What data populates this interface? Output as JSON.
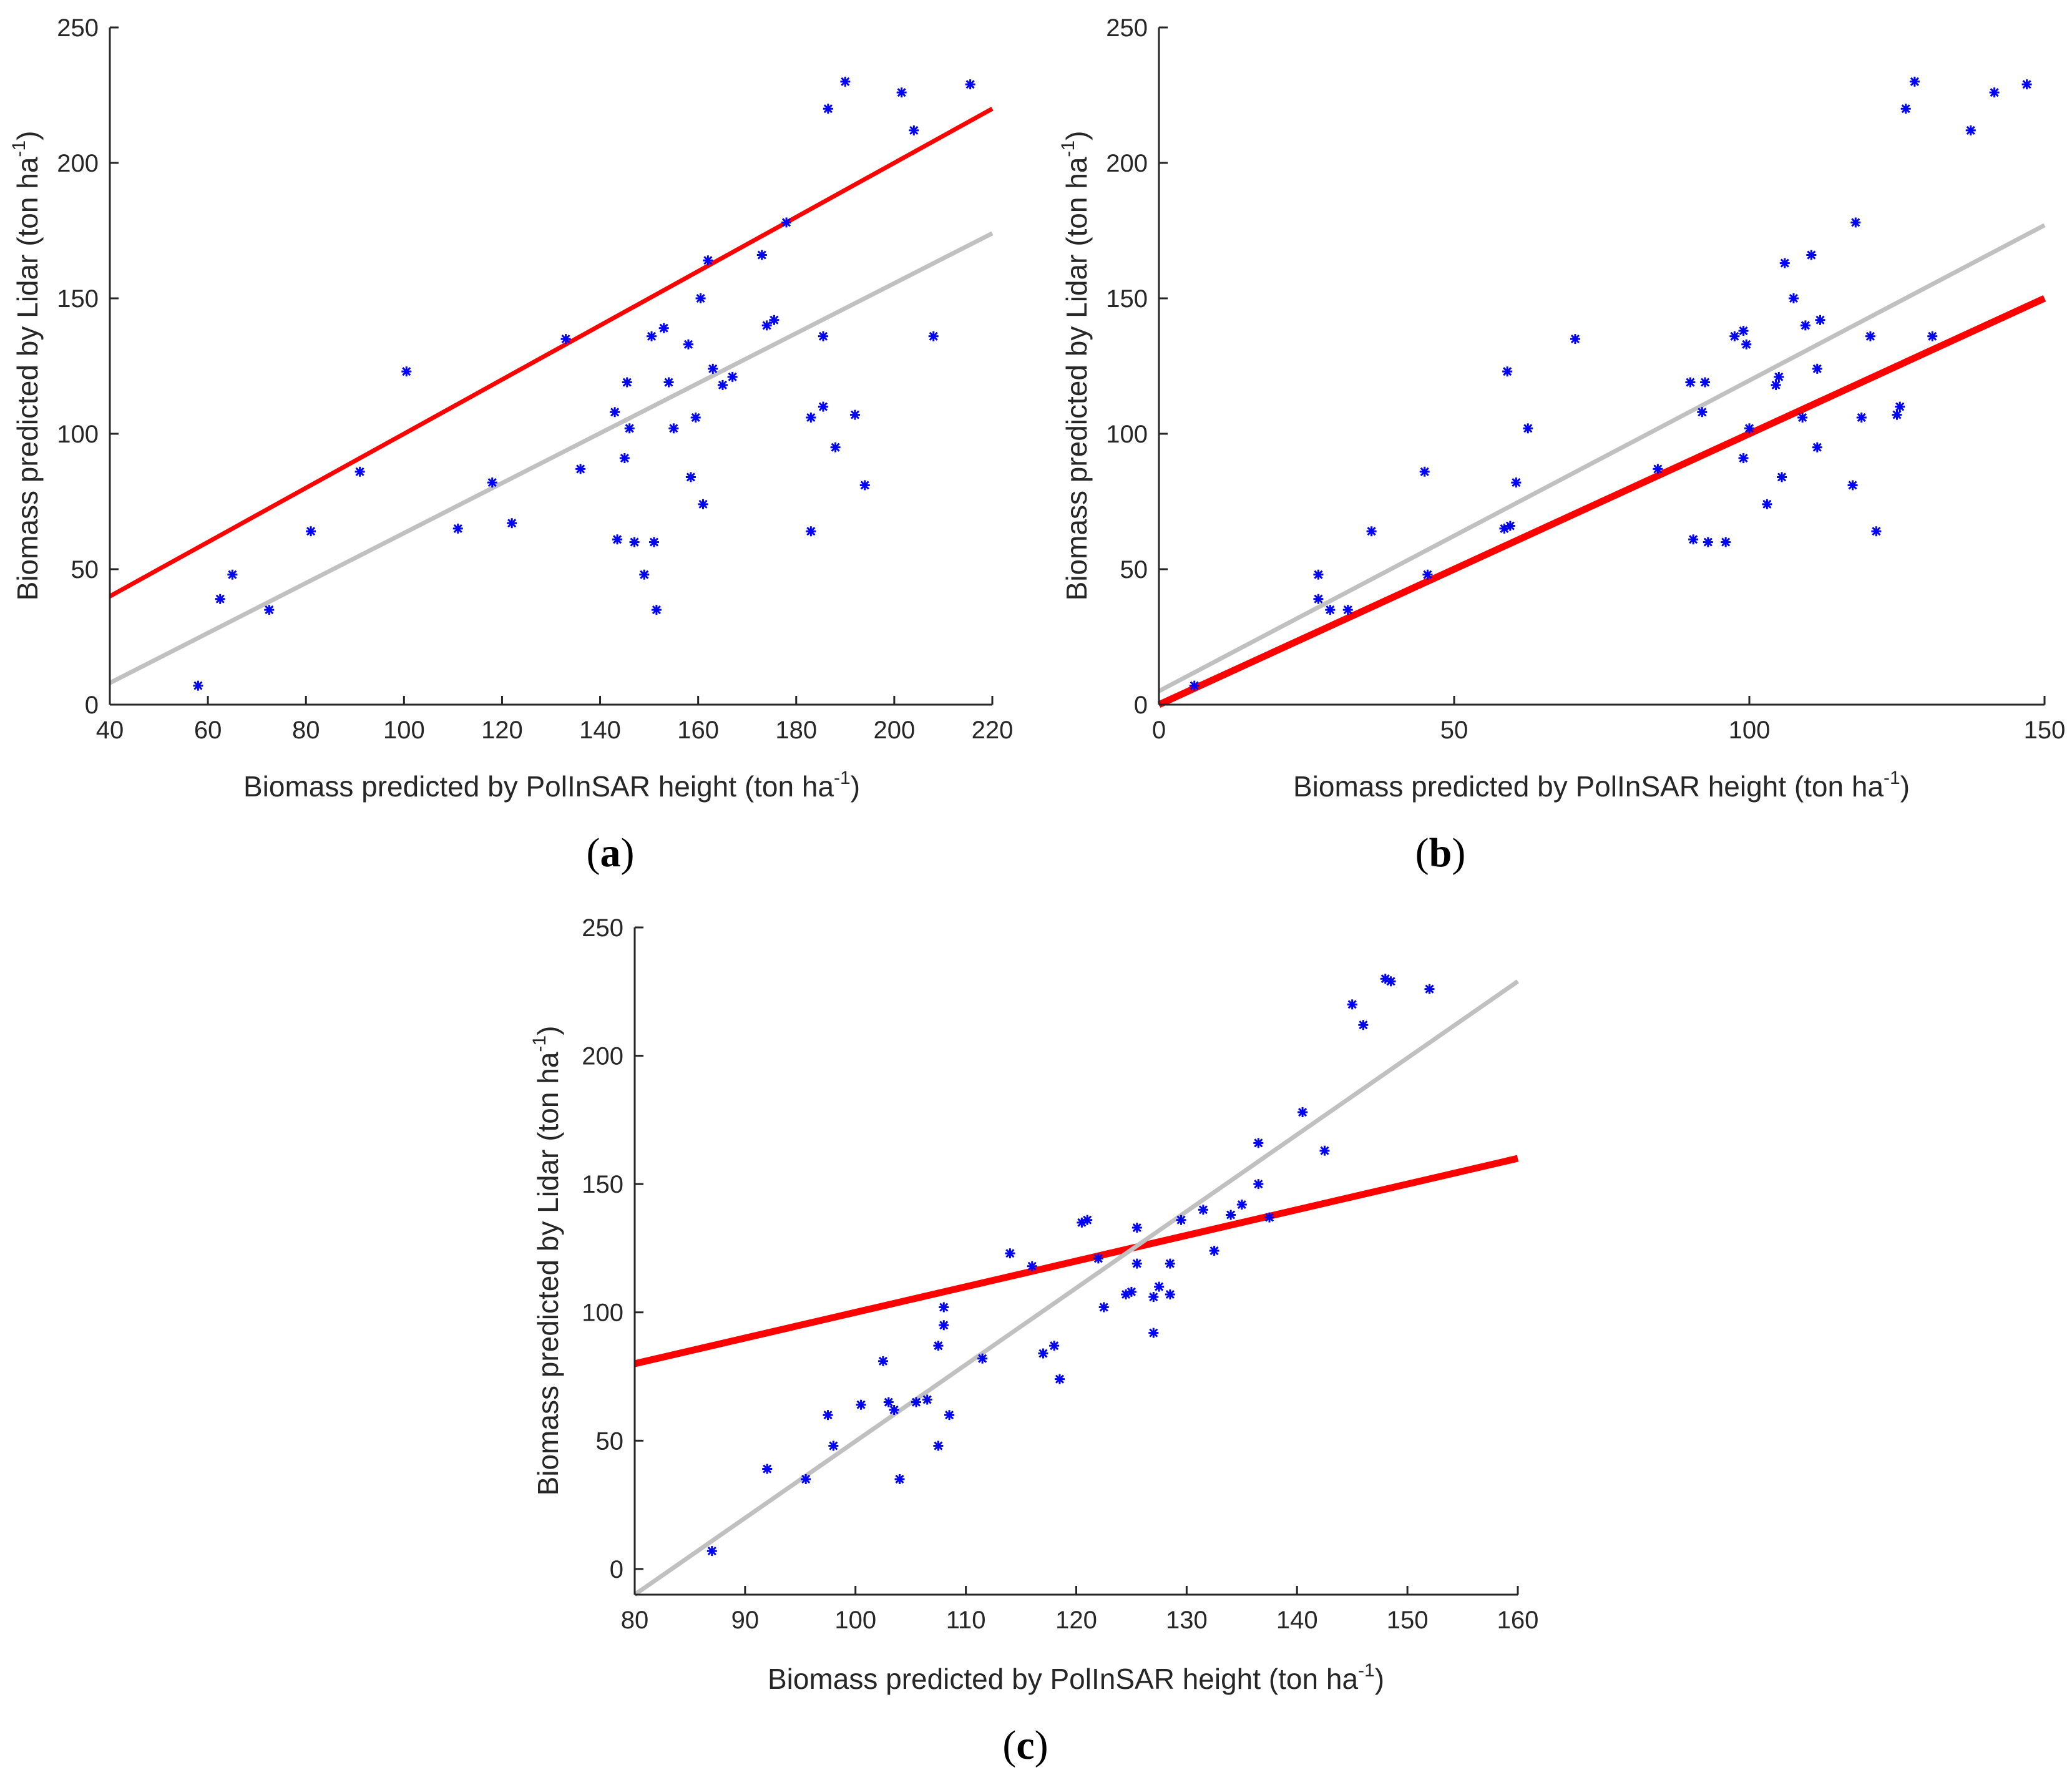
{
  "chart_data": [
    {
      "type": "scatter",
      "panel_label": "a",
      "xlabel": "Biomass predicted by PolInSAR height (ton ha",
      "ylabel": "Biomass predicted by Lidar (ton ha",
      "unit_exponent": "-1",
      "xlim": [
        40,
        220
      ],
      "ylim": [
        0,
        250
      ],
      "xticks": [
        "40",
        "60",
        "80",
        "100",
        "120",
        "140",
        "160",
        "180",
        "200",
        "220"
      ],
      "yticks": [
        "0",
        "50",
        "100",
        "150",
        "200",
        "250"
      ],
      "series": [
        {
          "name": "points",
          "marker": "*",
          "color": "#0000ff",
          "x": [
            58,
            62.5,
            65,
            72.5,
            81,
            91,
            100.5,
            111,
            118,
            122,
            133,
            136,
            143,
            143.5,
            145,
            145.5,
            146,
            147,
            149,
            150.5,
            151,
            151.5,
            153,
            154,
            155,
            158,
            158.5,
            159.5,
            160.5,
            161,
            162,
            163,
            165,
            167,
            173,
            174,
            175.5,
            178,
            183,
            183,
            185.5,
            185.5,
            186.5,
            188,
            190,
            192,
            194,
            201.5,
            204,
            208,
            215.5
          ],
          "y": [
            7,
            39,
            48,
            35,
            64,
            86,
            123,
            65,
            82,
            67,
            135,
            87,
            108,
            61,
            91,
            119,
            102,
            60,
            48,
            136,
            60,
            35,
            139,
            119,
            102,
            133,
            84,
            106,
            150,
            74,
            164,
            124,
            118,
            121,
            166,
            140,
            142,
            178,
            106,
            64,
            110,
            136,
            220,
            95,
            230,
            107,
            81,
            226,
            212,
            136,
            229
          ]
        },
        {
          "name": "red-line",
          "color": "#ff0000",
          "x": [
            40,
            220
          ],
          "y": [
            40,
            220
          ]
        },
        {
          "name": "gray-line",
          "color": "#c0c0c0",
          "x": [
            40,
            220
          ],
          "y": [
            8,
            174
          ]
        }
      ]
    },
    {
      "type": "scatter",
      "panel_label": "b",
      "xlabel": "Biomass predicted by PolInSAR height (ton ha",
      "ylabel": "Biomass predicted by Lidar (ton ha",
      "unit_exponent": "-1",
      "xlim": [
        0,
        150
      ],
      "ylim": [
        0,
        250
      ],
      "xticks": [
        "0",
        "50",
        "100",
        "150"
      ],
      "yticks": [
        "0",
        "50",
        "100",
        "150",
        "200",
        "250"
      ],
      "series": [
        {
          "name": "points",
          "marker": "*",
          "color": "#0000ff",
          "x": [
            6,
            27,
            27,
            29,
            32,
            36,
            45,
            45.5,
            58.5,
            59,
            59.5,
            60.5,
            62.5,
            70.5,
            84.5,
            90,
            90.5,
            92,
            92.5,
            93,
            96,
            97.5,
            99,
            99,
            99.5,
            100,
            103,
            104.5,
            105,
            105.5,
            106,
            107.5,
            109,
            109.5,
            110.5,
            111.5,
            111.5,
            112,
            117.5,
            118,
            119,
            120.5,
            121.5,
            125,
            125.5,
            126.5,
            128,
            131,
            137.5,
            141.5,
            147
          ],
          "y": [
            7,
            48,
            39,
            35,
            35,
            64,
            86,
            48,
            65,
            123,
            66,
            82,
            102,
            135,
            87,
            119,
            61,
            108,
            119,
            60,
            60,
            136,
            138,
            91,
            133,
            102,
            74,
            118,
            121,
            84,
            163,
            150,
            106,
            140,
            166,
            95,
            124,
            142,
            81,
            178,
            106,
            136,
            64,
            107,
            110,
            220,
            230,
            136,
            212,
            226,
            229
          ]
        },
        {
          "name": "red-line",
          "color": "#ff0000",
          "x": [
            0,
            150
          ],
          "y": [
            0,
            150
          ]
        },
        {
          "name": "gray-line",
          "color": "#c0c0c0",
          "x": [
            0,
            150
          ],
          "y": [
            5,
            177
          ]
        }
      ]
    },
    {
      "type": "scatter",
      "panel_label": "c",
      "xlabel": "Biomass predicted by PolInSAR height (ton ha",
      "ylabel": "Biomass predicted by Lidar (ton ha",
      "unit_exponent": "-1",
      "xlim": [
        80,
        160
      ],
      "ylim": [
        -10,
        250
      ],
      "xticks": [
        "80",
        "90",
        "100",
        "110",
        "120",
        "130",
        "140",
        "150",
        "160"
      ],
      "yticks": [
        "0",
        "50",
        "100",
        "150",
        "200",
        "250"
      ],
      "series": [
        {
          "name": "points",
          "marker": "*",
          "color": "#0000ff",
          "x": [
            87,
            92,
            95.5,
            97.5,
            98,
            100.5,
            102.5,
            103,
            103.5,
            104,
            105.5,
            106.5,
            107.5,
            107.5,
            108,
            108,
            108.5,
            111.5,
            114,
            116,
            117,
            118,
            118.5,
            120.5,
            121,
            122,
            122.5,
            124.5,
            125,
            125.5,
            125.5,
            127,
            127,
            127.5,
            128.5,
            128.5,
            129.5,
            131.5,
            132.5,
            134,
            135,
            136.5,
            136.5,
            137.5,
            140.5,
            142.5,
            145,
            146,
            148,
            148.5,
            152
          ],
          "y": [
            7,
            39,
            35,
            60,
            48,
            64,
            81,
            65,
            62,
            35,
            65,
            66,
            48,
            87,
            102,
            95,
            60,
            82,
            123,
            118,
            84,
            87,
            74,
            135,
            136,
            121,
            102,
            107,
            108,
            119,
            133,
            92,
            106,
            110,
            107,
            119,
            136,
            140,
            124,
            138,
            142,
            150,
            166,
            137,
            178,
            163,
            220,
            212,
            230,
            229,
            226
          ]
        },
        {
          "name": "red-line",
          "color": "#ff0000",
          "x": [
            80,
            160
          ],
          "y": [
            80,
            160
          ]
        },
        {
          "name": "gray-line",
          "color": "#c0c0c0",
          "x": [
            80,
            160
          ],
          "y": [
            -10,
            229
          ]
        }
      ]
    }
  ]
}
